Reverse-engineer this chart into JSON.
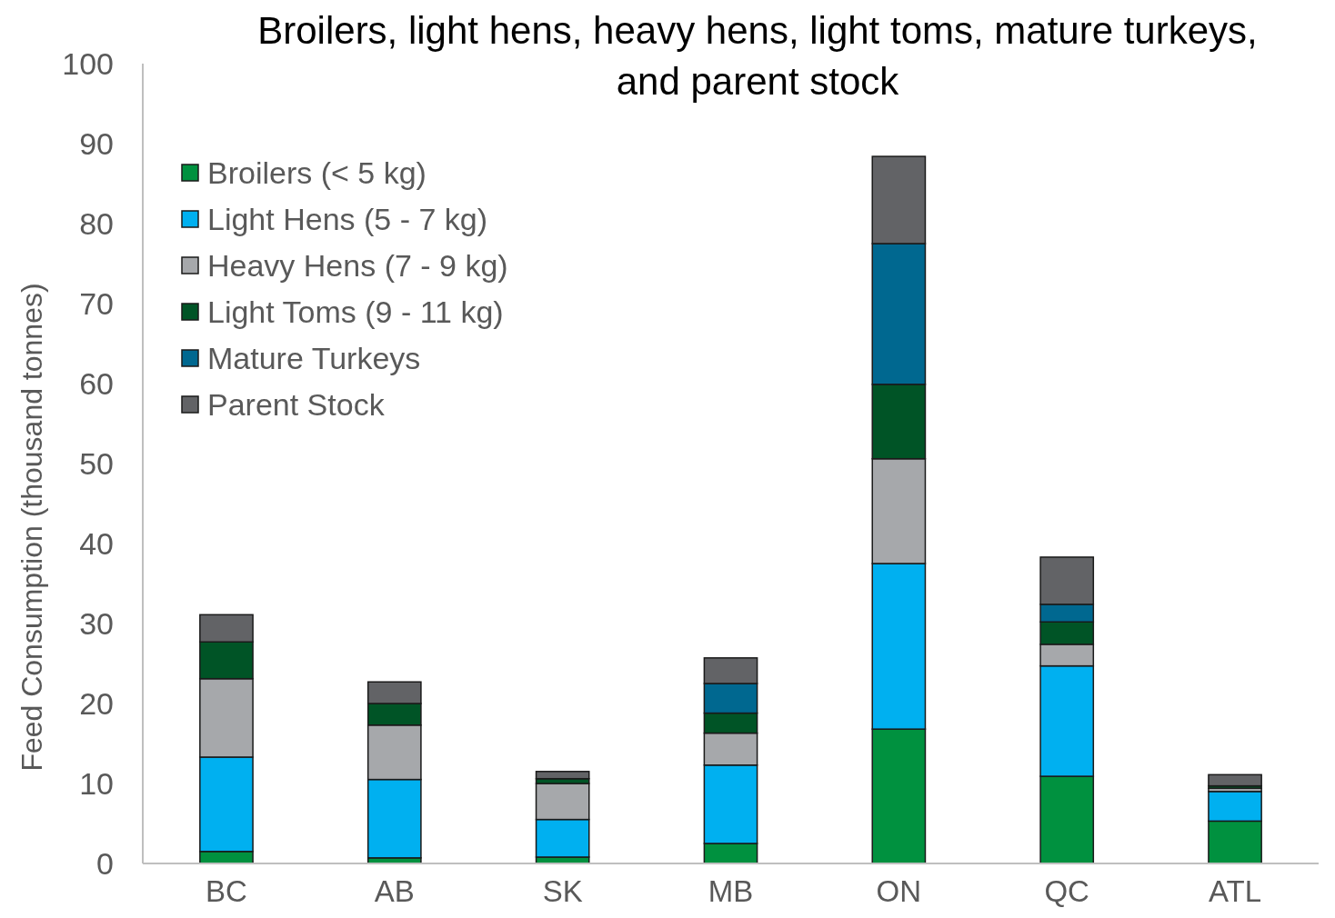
{
  "chart_data": {
    "type": "bar",
    "title": "Broilers, light hens, heavy hens, light toms, mature turkeys, and parent stock",
    "ylabel": "Feed Consumption (thousand tonnes)",
    "categories": [
      "BC",
      "AB",
      "SK",
      "MB",
      "ON",
      "QC",
      "ATL"
    ],
    "stacked": true,
    "ylim": [
      0,
      100
    ],
    "yticks": [
      0,
      10,
      20,
      30,
      40,
      50,
      60,
      70,
      80,
      90,
      100
    ],
    "grid": false,
    "legend": "top left",
    "series": [
      {
        "name": "Broilers (< 5 kg)",
        "color": "#00913f",
        "values": [
          1.5,
          0.7,
          0.8,
          2.5,
          16.8,
          10.9,
          5.3
        ]
      },
      {
        "name": "Light Hens (5 - 7 kg)",
        "color": "#00b0f0",
        "values": [
          11.8,
          9.8,
          4.7,
          9.8,
          20.7,
          13.8,
          3.7
        ]
      },
      {
        "name": "Heavy Hens (7 - 9 kg)",
        "color": "#a6a8ab",
        "values": [
          9.8,
          6.8,
          4.5,
          4.0,
          13.1,
          2.7,
          0.4
        ]
      },
      {
        "name": "Light Toms (9 - 11 kg)",
        "color": "#005426",
        "values": [
          4.6,
          2.7,
          0.6,
          2.5,
          9.3,
          2.8,
          0.3
        ]
      },
      {
        "name": "Mature Turkeys",
        "color": "#006890",
        "values": [
          0,
          0,
          0,
          3.7,
          17.6,
          2.2,
          0
        ]
      },
      {
        "name": "Parent Stock",
        "color": "#626366",
        "values": [
          3.4,
          2.7,
          0.9,
          3.2,
          10.9,
          5.9,
          1.4
        ]
      }
    ]
  }
}
